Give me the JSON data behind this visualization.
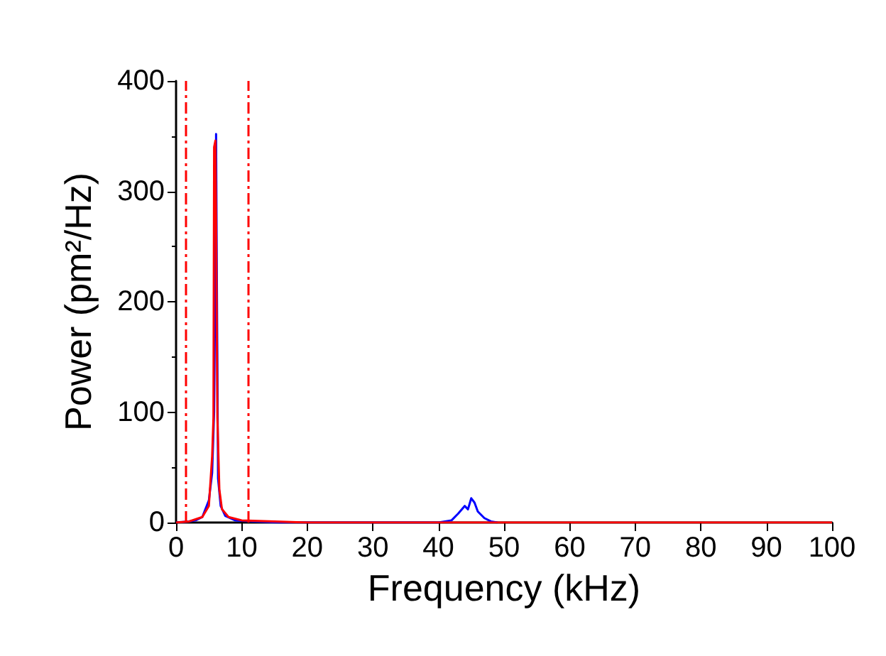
{
  "chart_data": {
    "type": "line",
    "xlabel": "Frequency (kHz)",
    "ylabel": "Power (pm²/Hz)",
    "xlim": [
      0,
      100
    ],
    "xticks": [
      0,
      10,
      20,
      30,
      40,
      50,
      60,
      70,
      80,
      90,
      100
    ],
    "ylim": [
      0,
      400
    ],
    "yticks": [
      0,
      100,
      200,
      300,
      400
    ],
    "grid": false,
    "marker": "none",
    "line_style": "solid",
    "series": [
      {
        "color": "#0000ff",
        "x": [
          0,
          2,
          3,
          4,
          5,
          5.5,
          5.8,
          6.0,
          6.1,
          6.2,
          6.4,
          6.8,
          7.5,
          9,
          12,
          16,
          40,
          42,
          43,
          44,
          44.5,
          45,
          45.5,
          46,
          47,
          48,
          49
        ],
        "values": [
          0,
          1,
          2,
          5,
          20,
          45,
          100,
          240,
          352,
          240,
          40,
          15,
          6,
          2,
          1,
          0,
          0,
          2,
          8,
          15,
          12,
          22,
          18,
          10,
          4,
          1,
          0
        ]
      },
      {
        "color": "#ff0000",
        "x": [
          0,
          2,
          4,
          5,
          5.5,
          5.7,
          5.8,
          6.0,
          6.1,
          6.3,
          6.6,
          7,
          8,
          10,
          15,
          20,
          100
        ],
        "values": [
          0,
          1,
          5,
          15,
          60,
          95,
          340,
          346,
          275,
          95,
          30,
          12,
          5,
          2,
          1,
          0,
          0
        ]
      }
    ],
    "ref_lines": [
      {
        "axis": "x",
        "value": 1.5,
        "color": "#ff0000",
        "line_style": "dashed"
      },
      {
        "axis": "x",
        "value": 11,
        "color": "#ff0000",
        "line_style": "dashed"
      }
    ]
  }
}
